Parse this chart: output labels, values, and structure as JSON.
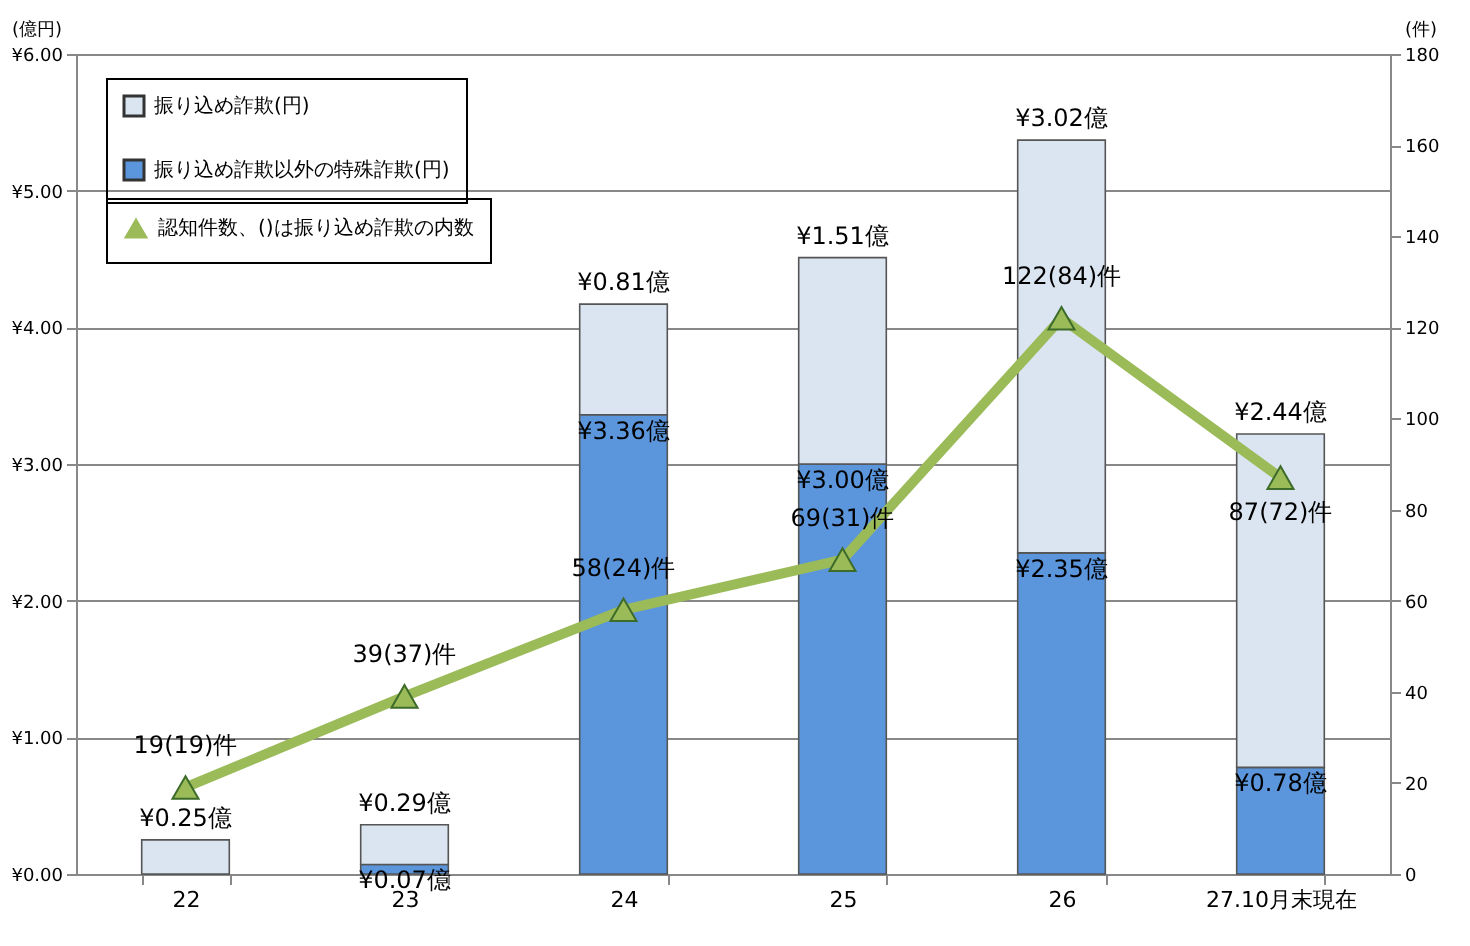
{
  "chart_data": {
    "type": "bar",
    "stacked": true,
    "categories": [
      "22",
      "23",
      "24",
      "25",
      "26",
      "27.10月末現在"
    ],
    "ylabel": "(億円)",
    "y2label": "(件)",
    "ylim": [
      0,
      6
    ],
    "yticks": [
      {
        "value": 0,
        "label": "¥0.00"
      },
      {
        "value": 1,
        "label": "¥1.00"
      },
      {
        "value": 2,
        "label": "¥2.00"
      },
      {
        "value": 3,
        "label": "¥3.00"
      },
      {
        "value": 4,
        "label": "¥4.00"
      },
      {
        "value": 5,
        "label": "¥5.00"
      },
      {
        "value": 6,
        "label": "¥6.00"
      }
    ],
    "y2lim": [
      0,
      180
    ],
    "y2ticks": [
      0,
      20,
      40,
      60,
      80,
      100,
      120,
      140,
      160,
      180
    ],
    "grid": "y",
    "legend": "top left",
    "marker": "triangle",
    "series": [
      {
        "name": "振り込め詐欺以外の特殊詐欺(円)",
        "color": "#5b96dc",
        "values": [
          0,
          0.07,
          3.36,
          3.0,
          2.35,
          0.78
        ],
        "value_labels": [
          null,
          "¥0.07億",
          "¥3.36億",
          "¥3.00億",
          "¥2.35億",
          "¥0.78億"
        ]
      },
      {
        "name": "振り込め詐欺(円)",
        "color": "#dbe5f1",
        "values": [
          0.25,
          0.29,
          0.81,
          1.51,
          3.02,
          2.44
        ],
        "value_labels": [
          "¥0.25億",
          "¥0.29億",
          "¥0.81億",
          "¥1.51億",
          "¥3.02億",
          "¥2.44億"
        ]
      },
      {
        "name": "認知件数、()は振り込め詐欺の内数",
        "type": "line",
        "axis": "y2",
        "color": "#9bbb59",
        "values": [
          19,
          39,
          58,
          69,
          122,
          87
        ],
        "value_labels": [
          "19(19)件",
          "39(37)件",
          "58(24)件",
          "69(31)件",
          "122(84)件",
          "87(72)件"
        ]
      }
    ]
  }
}
